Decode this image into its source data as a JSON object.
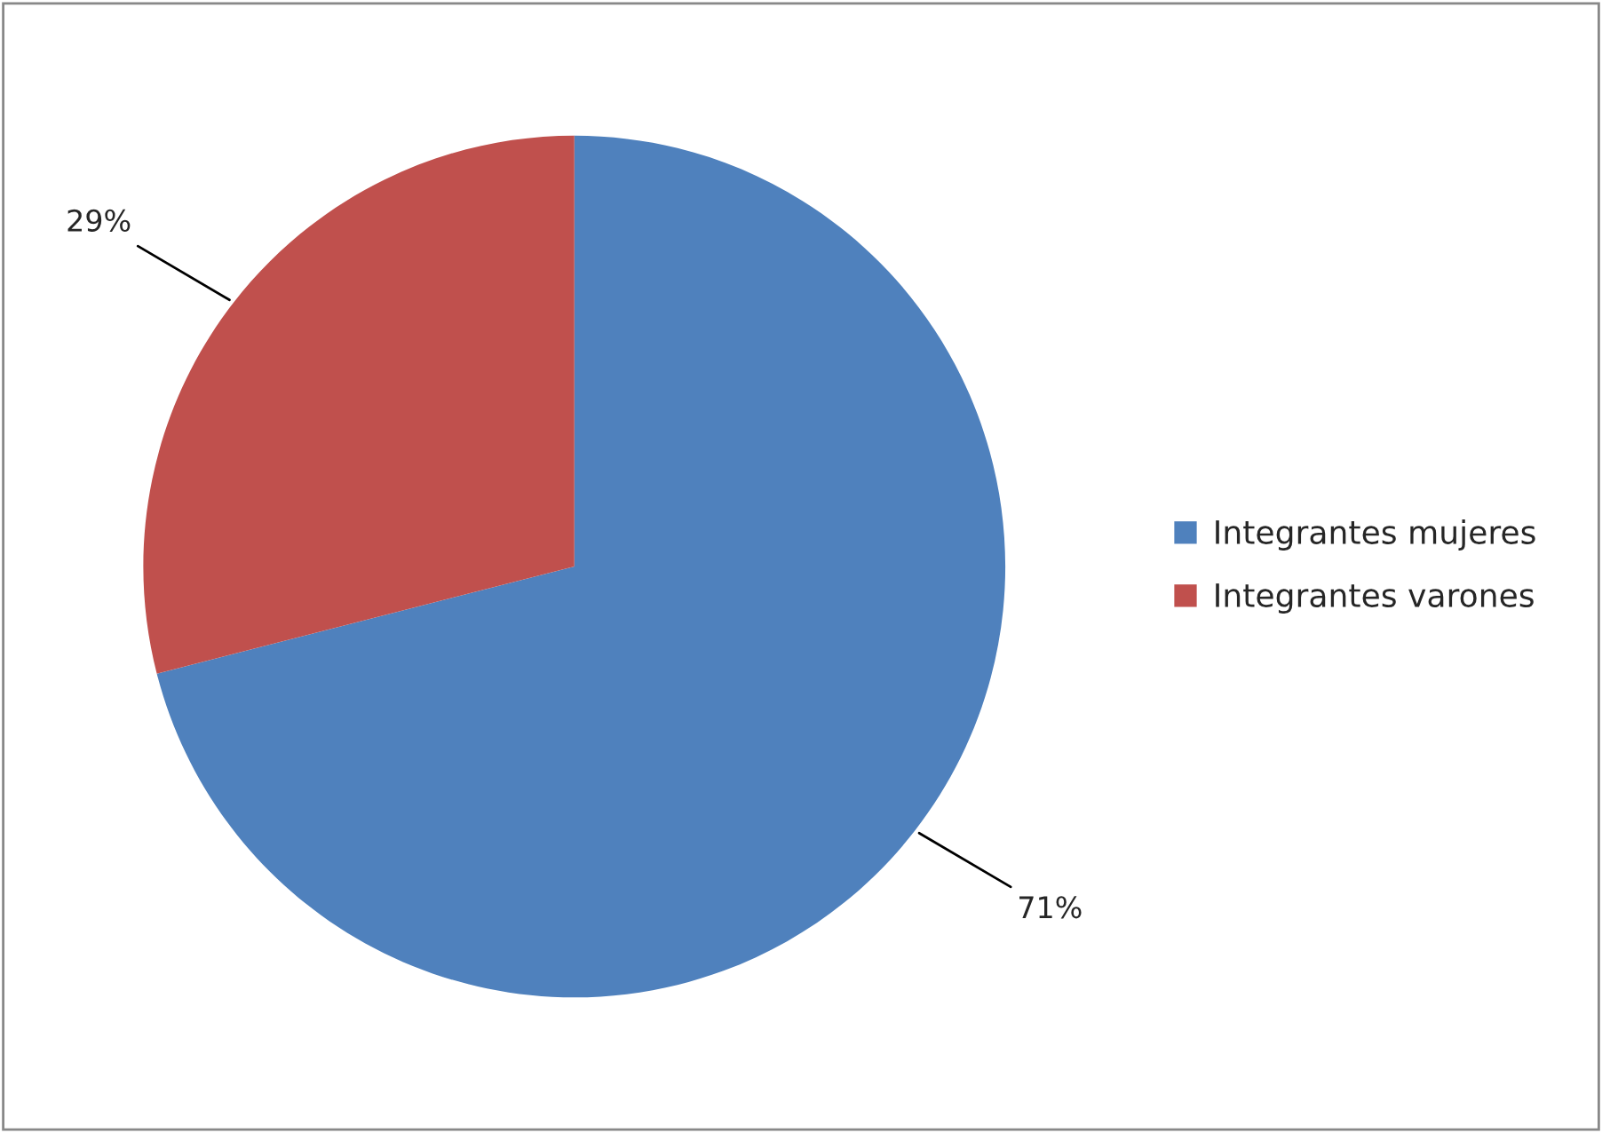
{
  "chart_data": {
    "type": "pie",
    "categories": [
      "Integrantes mujeres",
      "Integrantes varones"
    ],
    "values": [
      71,
      29
    ],
    "colors": [
      "#4f81bd",
      "#c0504d"
    ],
    "value_labels": [
      "71%",
      "29%"
    ],
    "legend": "right"
  }
}
